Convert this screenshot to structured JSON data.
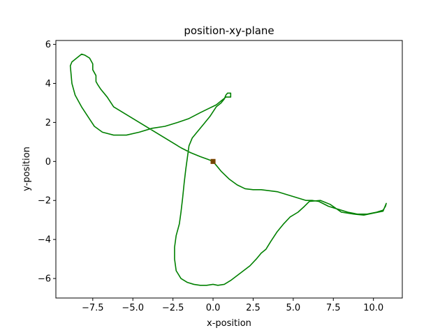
{
  "chart_data": {
    "type": "line",
    "title": "position-xy-plane",
    "xlabel": "x-position",
    "ylabel": "y-position",
    "xlim": [
      -9.8,
      11.8
    ],
    "ylim": [
      -7.0,
      6.2
    ],
    "grid": false,
    "x_ticks": [
      -7.5,
      -5.0,
      -2.5,
      0.0,
      2.5,
      5.0,
      7.5,
      10.0
    ],
    "x_tick_labels": [
      "−7.5",
      "−5.0",
      "−2.5",
      "0.0",
      "2.5",
      "5.0",
      "7.5",
      "10.0"
    ],
    "y_ticks": [
      -6,
      -4,
      -2,
      0,
      2,
      4,
      6
    ],
    "y_tick_labels": [
      "−6",
      "−4",
      "−2",
      "0",
      "2",
      "4",
      "6"
    ],
    "series": [
      {
        "color": "#008000",
        "x": [
          0.0,
          0.5,
          1.0,
          1.5,
          2.0,
          2.5,
          3.0,
          4.0,
          5.0,
          5.8,
          6.2,
          6.6,
          7.2,
          7.8,
          8.4,
          9.0,
          9.6,
          10.2,
          10.6,
          10.75,
          10.8,
          10.6,
          10.0,
          9.4,
          8.8,
          8.0,
          7.3,
          6.7,
          6.0,
          5.7,
          5.3,
          4.8,
          4.4,
          4.0,
          3.6,
          3.3,
          3.0,
          2.7,
          2.3,
          1.9,
          1.5,
          1.1,
          0.7,
          0.3,
          0.0,
          -0.4,
          -0.8,
          -1.2,
          -1.6,
          -2.0,
          -2.3,
          -2.4,
          -2.4,
          -2.3,
          -2.1,
          -2.0,
          -1.9,
          -1.8,
          -1.7,
          -1.6,
          -1.5,
          -1.3,
          -1.0,
          -0.6,
          -0.2,
          0.2,
          0.5,
          0.7,
          0.8,
          0.9,
          1.1,
          1.1,
          0.8,
          0.5,
          0.2,
          -0.3,
          -0.8,
          -1.5,
          -2.2,
          -3.0,
          -3.8,
          -4.6,
          -5.4,
          -6.2,
          -6.9,
          -7.4,
          -7.8,
          -8.2,
          -8.6,
          -8.8,
          -8.9,
          -8.8,
          -8.5,
          -8.2,
          -8.0,
          -7.7,
          -7.5,
          -7.5,
          -7.3,
          -7.3,
          -7.2,
          -7.0,
          -6.6,
          -6.2,
          -5.6,
          -5.0,
          -4.4,
          -3.8,
          -3.2,
          -2.6,
          -2.0,
          -1.4,
          -0.8,
          -0.3,
          0.0
        ],
        "y": [
          0.0,
          -0.5,
          -0.9,
          -1.2,
          -1.4,
          -1.45,
          -1.45,
          -1.55,
          -1.8,
          -2.0,
          -2.0,
          -2.05,
          -2.3,
          -2.45,
          -2.6,
          -2.7,
          -2.7,
          -2.6,
          -2.5,
          -2.3,
          -2.15,
          -2.55,
          -2.65,
          -2.75,
          -2.7,
          -2.6,
          -2.2,
          -2.0,
          -2.05,
          -2.3,
          -2.6,
          -2.85,
          -3.2,
          -3.6,
          -4.1,
          -4.5,
          -4.7,
          -5.0,
          -5.35,
          -5.6,
          -5.85,
          -6.1,
          -6.3,
          -6.35,
          -6.3,
          -6.35,
          -6.35,
          -6.3,
          -6.2,
          -6.0,
          -5.6,
          -5.0,
          -4.4,
          -3.8,
          -3.2,
          -2.6,
          -1.9,
          -1.1,
          -0.4,
          0.2,
          0.8,
          1.2,
          1.5,
          1.9,
          2.3,
          2.8,
          3.0,
          3.2,
          3.4,
          3.5,
          3.5,
          3.3,
          3.3,
          3.1,
          2.9,
          2.7,
          2.5,
          2.2,
          2.0,
          1.8,
          1.7,
          1.5,
          1.35,
          1.35,
          1.5,
          1.8,
          2.3,
          2.8,
          3.4,
          4.0,
          4.9,
          5.1,
          5.3,
          5.5,
          5.45,
          5.3,
          5.0,
          4.7,
          4.4,
          4.1,
          3.95,
          3.7,
          3.3,
          2.8,
          2.5,
          2.2,
          1.9,
          1.6,
          1.3,
          1.0,
          0.7,
          0.45,
          0.25,
          0.1,
          0.0
        ]
      }
    ],
    "markers": [
      {
        "label": "start",
        "x": 0.0,
        "y": 0.0,
        "color": "#ff0000"
      },
      {
        "label": "end",
        "x": 0.0,
        "y": 0.0,
        "color": "#008000"
      }
    ]
  }
}
